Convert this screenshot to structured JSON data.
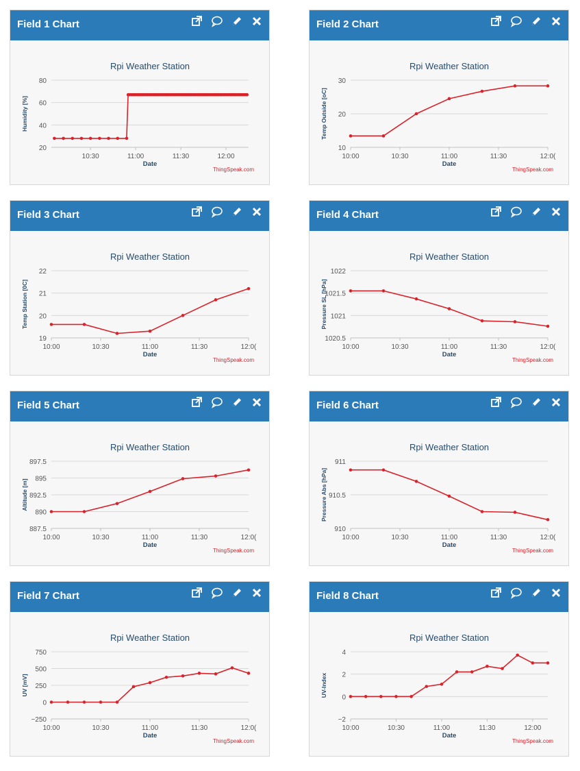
{
  "header_icons": [
    {
      "name": "external-link-icon"
    },
    {
      "name": "comment-icon"
    },
    {
      "name": "edit-pencil-icon"
    },
    {
      "name": "close-icon"
    }
  ],
  "colors": {
    "header": "#2b7bb9",
    "series": "#d9232b",
    "axis_title": "#274b6d",
    "grid": "#d8d8d8"
  },
  "widgets": [
    {
      "title": "Field 1 Chart",
      "chart_data": {
        "type": "line",
        "title": "Rpi Weather Station",
        "xlabel": "Date",
        "ylabel": "Humidity [%]",
        "credit": "ThingSpeak.com",
        "x_ticks": [
          {
            "x": 30,
            "label": "10:30"
          },
          {
            "x": 60,
            "label": "11:00"
          },
          {
            "x": 90,
            "label": "11:30"
          },
          {
            "x": 120,
            "label": "12:00"
          }
        ],
        "y_ticks": [
          {
            "y": 20,
            "label": "20"
          },
          {
            "y": 40,
            "label": "40"
          },
          {
            "y": 60,
            "label": "60"
          },
          {
            "y": 80,
            "label": "80"
          }
        ],
        "xlim": [
          4,
          135
        ],
        "ylim": [
          20,
          80
        ],
        "series": [
          {
            "name": "Humidity",
            "x": [
              6,
              12,
              18,
              24,
              30,
              36,
              42,
              48,
              54,
              55,
              56,
              57,
              58,
              59,
              60,
              61,
              62,
              63,
              64,
              65,
              66,
              67,
              68,
              69,
              70,
              71,
              72,
              73,
              74,
              75,
              76,
              77,
              78,
              79,
              80,
              81,
              82,
              83,
              84,
              85,
              86,
              87,
              88,
              89,
              90,
              91,
              92,
              93,
              94,
              95,
              96,
              97,
              98,
              99,
              100,
              101,
              102,
              103,
              104,
              105,
              106,
              107,
              108,
              109,
              110,
              111,
              112,
              113,
              114,
              115,
              116,
              117,
              118,
              119,
              120,
              121,
              122,
              123,
              124,
              125,
              126,
              127,
              128,
              129,
              130,
              131,
              132,
              133,
              134
            ],
            "y": [
              28,
              28,
              28,
              28,
              28,
              28,
              28,
              28,
              28,
              67,
              67,
              67,
              67,
              67,
              67,
              67,
              67,
              67,
              67,
              67,
              67,
              67,
              67,
              67,
              67,
              67,
              67,
              67,
              67,
              67,
              67,
              67,
              67,
              67,
              67,
              67,
              67,
              67,
              67,
              67,
              67,
              67,
              67,
              67,
              67,
              67,
              67,
              67,
              67,
              67,
              67,
              67,
              67,
              67,
              67,
              67,
              67,
              67,
              67,
              67,
              67,
              67,
              67,
              67,
              67,
              67,
              67,
              67,
              67,
              67,
              67,
              67,
              67,
              67,
              67,
              67,
              67,
              67,
              67,
              67,
              67,
              67,
              67,
              67,
              67,
              67,
              67,
              67,
              67
            ]
          }
        ]
      }
    },
    {
      "title": "Field 2 Chart",
      "chart_data": {
        "type": "line",
        "title": "Rpi Weather Station",
        "xlabel": "Date",
        "ylabel": "Temp Outside [oC]",
        "credit": "ThingSpeak.com",
        "x_ticks": [
          {
            "x": 0,
            "label": "10:00"
          },
          {
            "x": 30,
            "label": "10:30"
          },
          {
            "x": 60,
            "label": "11:00"
          },
          {
            "x": 90,
            "label": "11:30"
          },
          {
            "x": 120,
            "label": "12:0("
          }
        ],
        "y_ticks": [
          {
            "y": 10,
            "label": "10"
          },
          {
            "y": 20,
            "label": "20"
          },
          {
            "y": 30,
            "label": "30"
          }
        ],
        "xlim": [
          0,
          120
        ],
        "ylim": [
          10,
          30
        ],
        "series": [
          {
            "name": "Temp Outside",
            "x": [
              0,
              20,
              40,
              60,
              80,
              100,
              120
            ],
            "y": [
              13.4,
              13.4,
              20,
              24.5,
              26.7,
              28.3,
              28.3
            ]
          }
        ]
      }
    },
    {
      "title": "Field 3 Chart",
      "chart_data": {
        "type": "line",
        "title": "Rpi Weather Station",
        "xlabel": "Date",
        "ylabel": "Temp Station [0C]",
        "credit": "ThingSpeak.com",
        "x_ticks": [
          {
            "x": 0,
            "label": "10:00"
          },
          {
            "x": 30,
            "label": "10:30"
          },
          {
            "x": 60,
            "label": "11:00"
          },
          {
            "x": 90,
            "label": "11:30"
          },
          {
            "x": 120,
            "label": "12:0("
          }
        ],
        "y_ticks": [
          {
            "y": 19,
            "label": "19"
          },
          {
            "y": 20,
            "label": "20"
          },
          {
            "y": 21,
            "label": "21"
          },
          {
            "y": 22,
            "label": "22"
          }
        ],
        "xlim": [
          0,
          120
        ],
        "ylim": [
          19,
          22
        ],
        "series": [
          {
            "name": "Temp Station",
            "x": [
              0,
              20,
              40,
              60,
              80,
              100,
              120
            ],
            "y": [
              19.6,
              19.6,
              19.2,
              19.3,
              20.0,
              20.7,
              21.2
            ]
          }
        ]
      }
    },
    {
      "title": "Field 4 Chart",
      "chart_data": {
        "type": "line",
        "title": "Rpi Weather Station",
        "xlabel": "Date",
        "ylabel": "Pressure SL [hPa]",
        "credit": "ThingSpeak.com",
        "x_ticks": [
          {
            "x": 0,
            "label": "10:00"
          },
          {
            "x": 30,
            "label": "10:30"
          },
          {
            "x": 60,
            "label": "11:00"
          },
          {
            "x": 90,
            "label": "11:30"
          },
          {
            "x": 120,
            "label": "12:0("
          }
        ],
        "y_ticks": [
          {
            "y": 1020.5,
            "label": "1020.5"
          },
          {
            "y": 1021,
            "label": "1021"
          },
          {
            "y": 1021.5,
            "label": "1021.5"
          },
          {
            "y": 1022,
            "label": "1022"
          }
        ],
        "xlim": [
          0,
          120
        ],
        "ylim": [
          1020.5,
          1022
        ],
        "series": [
          {
            "name": "Pressure SL",
            "x": [
              0,
              20,
              40,
              60,
              80,
              100,
              120
            ],
            "y": [
              1021.55,
              1021.55,
              1021.37,
              1021.15,
              1020.88,
              1020.86,
              1020.76
            ]
          }
        ]
      }
    },
    {
      "title": "Field 5 Chart",
      "chart_data": {
        "type": "line",
        "title": "Rpi Weather Station",
        "xlabel": "Date",
        "ylabel": "Altitude [m]",
        "credit": "ThingSpeak.com",
        "x_ticks": [
          {
            "x": 0,
            "label": "10:00"
          },
          {
            "x": 30,
            "label": "10:30"
          },
          {
            "x": 60,
            "label": "11:00"
          },
          {
            "x": 90,
            "label": "11:30"
          },
          {
            "x": 120,
            "label": "12:0("
          }
        ],
        "y_ticks": [
          {
            "y": 887.5,
            "label": "887.5"
          },
          {
            "y": 890,
            "label": "890"
          },
          {
            "y": 892.5,
            "label": "892.5"
          },
          {
            "y": 895,
            "label": "895"
          },
          {
            "y": 897.5,
            "label": "897.5"
          }
        ],
        "xlim": [
          0,
          120
        ],
        "ylim": [
          887.5,
          897.5
        ],
        "series": [
          {
            "name": "Altitude",
            "x": [
              0,
              20,
              40,
              60,
              80,
              100,
              120
            ],
            "y": [
              890.0,
              890.0,
              891.2,
              893.0,
              894.9,
              895.3,
              896.2
            ]
          }
        ]
      }
    },
    {
      "title": "Field 6 Chart",
      "chart_data": {
        "type": "line",
        "title": "Rpi Weather Station",
        "xlabel": "Date",
        "ylabel": "Pressure Abs [hPa]",
        "credit": "ThingSpeak.com",
        "x_ticks": [
          {
            "x": 0,
            "label": "10:00"
          },
          {
            "x": 30,
            "label": "10:30"
          },
          {
            "x": 60,
            "label": "11:00"
          },
          {
            "x": 90,
            "label": "11:30"
          },
          {
            "x": 120,
            "label": "12:0("
          }
        ],
        "y_ticks": [
          {
            "y": 910,
            "label": "910"
          },
          {
            "y": 910.5,
            "label": "910.5"
          },
          {
            "y": 911,
            "label": "911"
          }
        ],
        "xlim": [
          0,
          120
        ],
        "ylim": [
          910,
          911
        ],
        "series": [
          {
            "name": "Pressure Abs",
            "x": [
              0,
              20,
              40,
              60,
              80,
              100,
              120
            ],
            "y": [
              910.87,
              910.87,
              910.7,
              910.48,
              910.25,
              910.24,
              910.13
            ]
          }
        ]
      }
    },
    {
      "title": "Field 7 Chart",
      "chart_data": {
        "type": "line",
        "title": "Rpi Weather Station",
        "xlabel": "Date",
        "ylabel": "UV [mV]",
        "credit": "ThingSpeak.com",
        "x_ticks": [
          {
            "x": 0,
            "label": "10:00"
          },
          {
            "x": 30,
            "label": "10:30"
          },
          {
            "x": 60,
            "label": "11:00"
          },
          {
            "x": 90,
            "label": "11:30"
          },
          {
            "x": 120,
            "label": "12:0("
          }
        ],
        "y_ticks": [
          {
            "y": -250,
            "label": "−250"
          },
          {
            "y": 0,
            "label": "0"
          },
          {
            "y": 250,
            "label": "250"
          },
          {
            "y": 500,
            "label": "500"
          },
          {
            "y": 750,
            "label": "750"
          }
        ],
        "xlim": [
          0,
          120
        ],
        "ylim": [
          -250,
          750
        ],
        "series": [
          {
            "name": "UV",
            "x": [
              0,
              10,
              20,
              30,
              40,
              50,
              60,
              70,
              80,
              90,
              100,
              110,
              120
            ],
            "y": [
              0,
              0,
              0,
              0,
              0,
              230,
              290,
              370,
              390,
              430,
              420,
              510,
              430
            ]
          }
        ]
      }
    },
    {
      "title": "Field 8 Chart",
      "chart_data": {
        "type": "line",
        "title": "Rpi Weather Station",
        "xlabel": "Date",
        "ylabel": "UV-Index",
        "credit": "ThingSpeak.com",
        "x_ticks": [
          {
            "x": 0,
            "label": "10:00"
          },
          {
            "x": 30,
            "label": "10:30"
          },
          {
            "x": 60,
            "label": "11:00"
          },
          {
            "x": 90,
            "label": "11:30"
          },
          {
            "x": 120,
            "label": "12:00"
          }
        ],
        "y_ticks": [
          {
            "y": -2,
            "label": "−2"
          },
          {
            "y": 0,
            "label": "0"
          },
          {
            "y": 2,
            "label": "2"
          },
          {
            "y": 4,
            "label": "4"
          }
        ],
        "xlim": [
          0,
          130
        ],
        "ylim": [
          -2,
          4
        ],
        "series": [
          {
            "name": "UV-Index",
            "x": [
              0,
              10,
              20,
              30,
              40,
              50,
              60,
              70,
              80,
              90,
              100,
              110,
              120,
              130
            ],
            "y": [
              0,
              0,
              0,
              0,
              0,
              0.9,
              1.1,
              2.2,
              2.2,
              2.7,
              2.5,
              3.7,
              3.0,
              3.0
            ]
          }
        ]
      }
    }
  ]
}
